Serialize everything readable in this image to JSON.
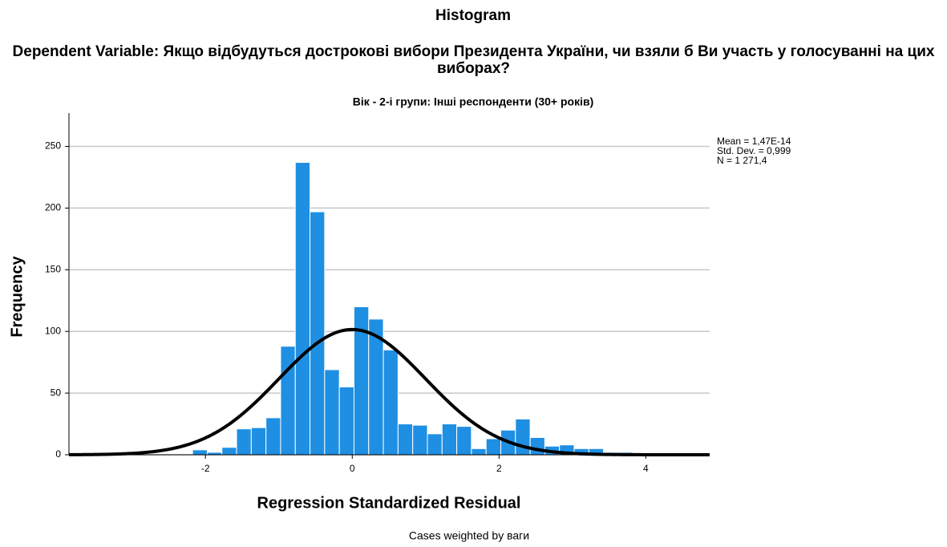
{
  "chart_data": {
    "type": "histogram",
    "title": "Histogram",
    "subtitle": "Dependent Variable: Якщо відбудуться дострокові вибори Президента України, чи взяли б Ви участь у голосуванні на цих виборах?",
    "panel_title": "Вік - 2-і групи: Інші респонденти (30+ років)",
    "x_label": "Regression Standardized Residual",
    "y_label": "Frequency",
    "footnote": "Cases weighted by ваги",
    "bins": [
      -2.176,
      -1.976,
      -1.776,
      -1.576,
      -1.376,
      -1.176,
      -0.976,
      -0.776,
      -0.576,
      -0.376,
      -0.176,
      0.024,
      0.224,
      0.424,
      0.624,
      0.824,
      1.024,
      1.224,
      1.424,
      1.624,
      1.824,
      2.024,
      2.224,
      2.424,
      2.624,
      2.824,
      3.024,
      3.224,
      3.424,
      3.624,
      3.824,
      4.024
    ],
    "values": [
      4,
      2,
      6,
      21,
      22,
      30,
      88,
      237,
      197,
      69,
      55,
      120,
      110,
      85,
      25,
      24,
      17,
      25,
      23,
      5,
      13,
      20,
      29,
      14,
      7,
      8,
      5,
      5,
      2,
      2,
      1
    ],
    "color": "#1f8fe3",
    "curve_color": "#000000",
    "stats": {
      "mean": {
        "value": 1.47e-14,
        "label": "Mean = 1,47E-14"
      },
      "sd": {
        "value": 0.999,
        "label": "Std. Dev. = 0,999"
      },
      "n": {
        "value": 1271.4,
        "label": "N = 1 271,4"
      }
    },
    "xlim": [
      -3.86,
      4.87
    ],
    "ylim": [
      0,
      277
    ],
    "xticks": [
      -2,
      0,
      2,
      4
    ],
    "yticks": [
      0,
      50,
      100,
      150,
      200,
      250
    ],
    "grid": true
  }
}
